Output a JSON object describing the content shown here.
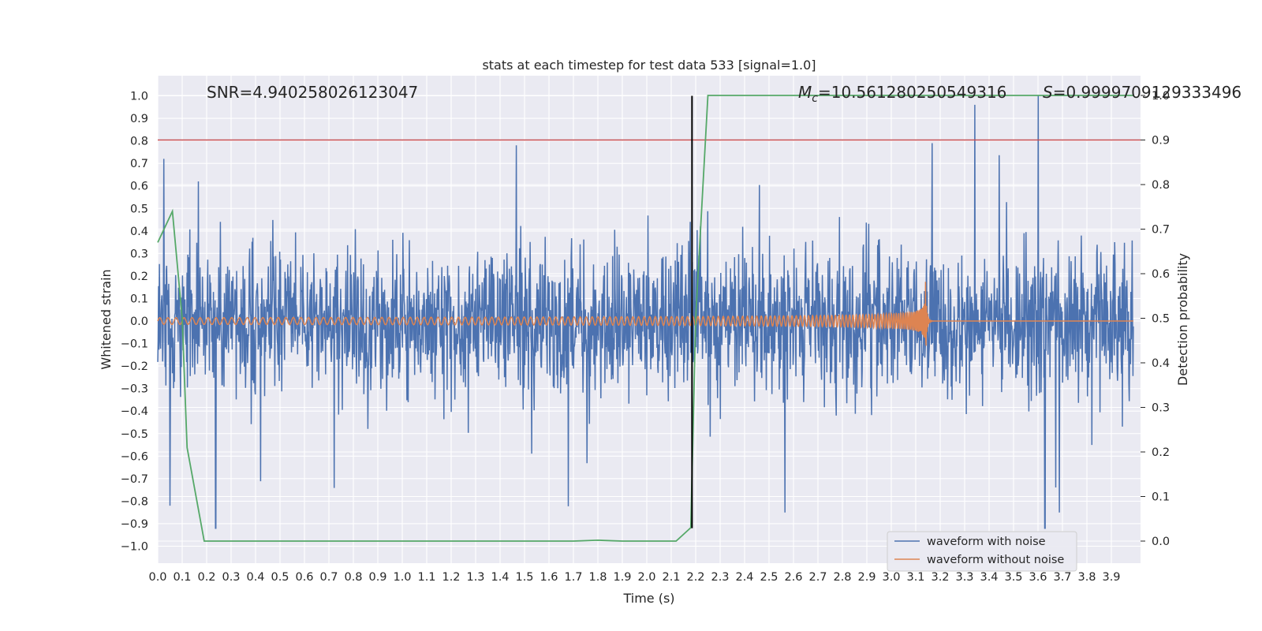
{
  "chart_data": {
    "type": "line",
    "title": "stats at each timestep for test data 533 [signal=1.0]",
    "xlabel": "Time (s)",
    "ylabel": "Whitened strain",
    "y2label": "Detection probability",
    "xlim": [
      0.0,
      3.99
    ],
    "ylim": [
      -1.02,
      1.05
    ],
    "y2lim": [
      -0.05,
      1.0
    ],
    "x_ticks": [
      "0.0",
      "0.1",
      "0.2",
      "0.3",
      "0.4",
      "0.5",
      "0.6",
      "0.7",
      "0.8",
      "0.9",
      "1.0",
      "1.1",
      "1.2",
      "1.3",
      "1.4",
      "1.5",
      "1.6",
      "1.7",
      "1.8",
      "1.9",
      "2.0",
      "2.1",
      "2.2",
      "2.3",
      "2.4",
      "2.5",
      "2.6",
      "2.7",
      "2.8",
      "2.9",
      "3.0",
      "3.1",
      "3.2",
      "3.3",
      "3.4",
      "3.5",
      "3.6",
      "3.7",
      "3.8",
      "3.9"
    ],
    "y_ticks": [
      "1.0",
      "0.9",
      "0.8",
      "0.7",
      "0.6",
      "0.5",
      "0.4",
      "0.3",
      "0.2",
      "0.1",
      "0.0",
      "−0.1",
      "−0.2",
      "−0.3",
      "−0.4",
      "−0.5",
      "−0.6",
      "−0.7",
      "−0.8",
      "−0.9",
      "−1.0"
    ],
    "y2_ticks": [
      "1.0",
      "0.9",
      "0.8",
      "0.7",
      "0.6",
      "0.5",
      "0.4",
      "0.3",
      "0.2",
      "0.1",
      "0.0"
    ],
    "grid": true,
    "legend_position": "bottom-right",
    "annotations": {
      "snr": "SNR=4.940258026123047",
      "mc_symbol": "M",
      "mc_sub": "c",
      "mc_value": "=10.561280250549316",
      "s_symbol": "S",
      "s_value": "=0.9999709129333496"
    },
    "threshold_line": {
      "axis": "y2",
      "value": 0.9,
      "color": "#c44e52"
    },
    "vertical_marker": {
      "x": 2.185,
      "y_from": -0.92,
      "y_to": 1.0,
      "color": "#000000"
    },
    "series": [
      {
        "name": "waveform with noise",
        "color": "#4c72b0",
        "axis": "y",
        "description_x_range": [
          0.0,
          3.99
        ],
        "envelope": {
          "typical_amplitude": 0.35,
          "peak_max": 1.0,
          "peak_min": -0.92
        }
      },
      {
        "name": "waveform without noise",
        "color": "#dd8452",
        "axis": "y",
        "chirp": {
          "start_x": 0.0,
          "merger_x": 3.14,
          "end_x": 3.99,
          "start_amplitude": 0.015,
          "peak_amplitude": 0.2,
          "start_freq_hz": 30
        }
      },
      {
        "name": "",
        "color": "#55a868",
        "axis": "y2",
        "x": [
          0.0,
          0.06,
          0.1,
          0.12,
          0.19,
          0.2,
          0.3,
          0.6,
          0.9,
          1.2,
          1.5,
          1.7,
          1.8,
          1.9,
          2.0,
          2.12,
          2.18,
          2.2,
          2.25,
          2.3,
          2.6,
          3.0,
          3.5,
          3.99
        ],
        "values": [
          0.67,
          0.74,
          0.5,
          0.21,
          0.0,
          0.0,
          0.0,
          0.0,
          0.0,
          0.0,
          0.0,
          0.0,
          0.002,
          0.0,
          0.0,
          0.0,
          0.03,
          0.5,
          1.0,
          1.0,
          1.0,
          1.0,
          1.0,
          1.0
        ]
      }
    ]
  }
}
